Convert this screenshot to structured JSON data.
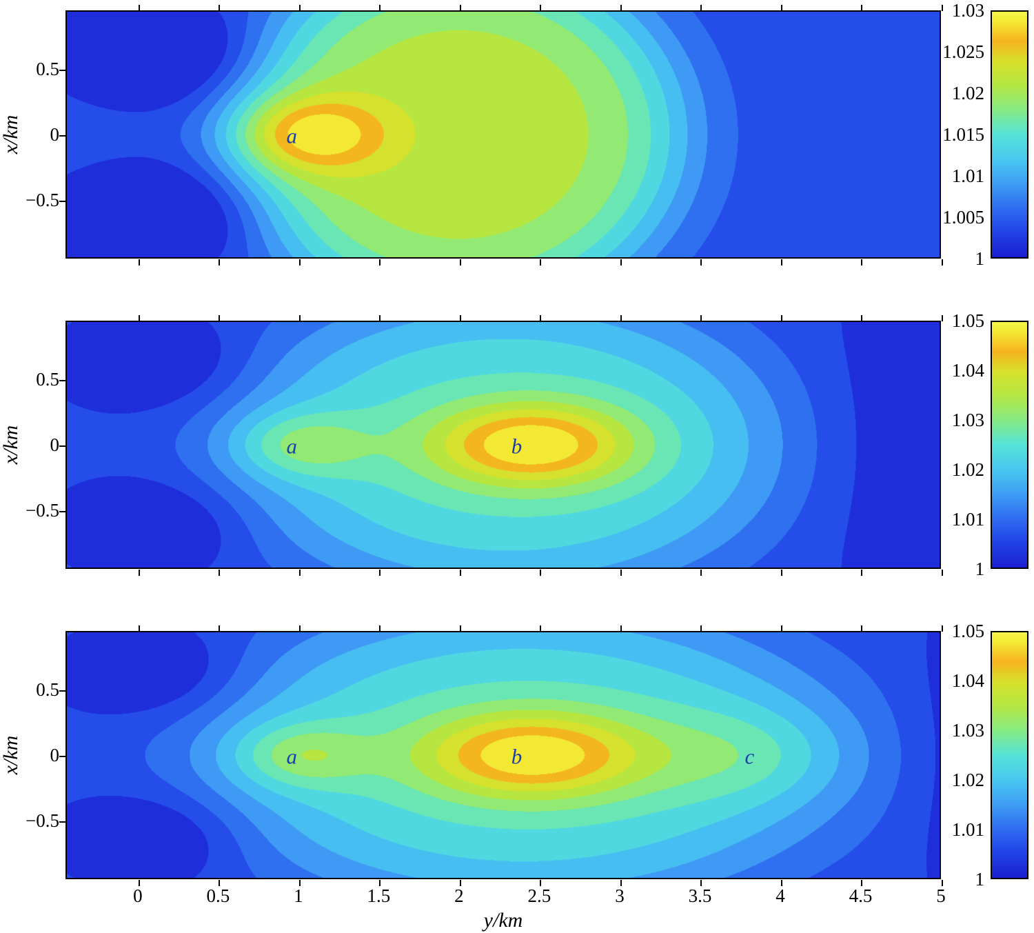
{
  "figure": {
    "background": "#ffffff",
    "xlabel": "y/km",
    "ylabel": "x/km",
    "text_color": "#000000",
    "annotation_color": "#1c3fae",
    "h_range": [
      -0.45,
      5.0
    ],
    "v_range": [
      -0.95,
      0.95
    ],
    "x_tick_values": [
      0,
      0.5,
      1,
      1.5,
      2,
      2.5,
      3,
      3.5,
      4,
      4.5,
      5
    ],
    "x_tick_labels": [
      "0",
      "0.5",
      "1",
      "1.5",
      "2",
      "2.5",
      "3",
      "3.5",
      "4",
      "4.5",
      "5"
    ],
    "y_tick_values": [
      0.5,
      0,
      -0.5
    ],
    "y_tick_labels": [
      "0.5",
      "0",
      "−0.5"
    ],
    "levels": 12,
    "colormap_stops": [
      {
        "t": 0.0,
        "c": "#1a1fd0"
      },
      {
        "t": 0.1,
        "c": "#2142e8"
      },
      {
        "t": 0.2,
        "c": "#2e6cf0"
      },
      {
        "t": 0.3,
        "c": "#3f9ef4"
      },
      {
        "t": 0.4,
        "c": "#48c8f0"
      },
      {
        "t": 0.5,
        "c": "#55e3d7"
      },
      {
        "t": 0.6,
        "c": "#86ea84"
      },
      {
        "t": 0.7,
        "c": "#b4e743"
      },
      {
        "t": 0.8,
        "c": "#d8e02a"
      },
      {
        "t": 0.88,
        "c": "#f6b31e"
      },
      {
        "t": 0.96,
        "c": "#f3ea34"
      },
      {
        "t": 1.0,
        "c": "#f6f64a"
      }
    ]
  },
  "chart_data": [
    {
      "type": "heatmap",
      "name": "top-panel",
      "xlabel": "y/km",
      "ylabel": "x/km",
      "colorbar": {
        "min": 1.0,
        "max": 1.03,
        "tick_values": [
          1.03,
          1.025,
          1.02,
          1.015,
          1.01,
          1.005,
          1
        ],
        "tick_labels": [
          "1.03",
          "1.025",
          "1.02",
          "1.015",
          "1.01",
          "1.005",
          "1"
        ]
      },
      "base": 1.004,
      "features": [
        {
          "name": "broad-ridge",
          "h": 2.0,
          "v": 0,
          "amp": 0.017,
          "sh": 1.0,
          "sv": 1.0,
          "p": 2.5
        },
        {
          "name": "peak-a",
          "h": 1.05,
          "v": 0,
          "amp": 0.011,
          "sh": 0.34,
          "sv": 0.21,
          "p": 1
        },
        {
          "name": "dip-top-left",
          "h": 0.1,
          "v": 0.63,
          "amp": -0.0075,
          "sh": 0.42,
          "sv": 0.26,
          "p": 1
        },
        {
          "name": "dip-bot-left",
          "h": 0.1,
          "v": -0.63,
          "amp": -0.0075,
          "sh": 0.42,
          "sv": 0.26,
          "p": 1
        }
      ],
      "annotations": [
        {
          "text": "a",
          "h": 0.95,
          "v": 0.0
        }
      ]
    },
    {
      "type": "heatmap",
      "name": "middle-panel",
      "xlabel": "y/km",
      "ylabel": "x/km",
      "colorbar": {
        "min": 1.0,
        "max": 1.05,
        "tick_values": [
          1.05,
          1.04,
          1.03,
          1.02,
          1.01,
          1
        ],
        "tick_labels": [
          "1.05",
          "1.04",
          "1.03",
          "1.02",
          "1.01",
          "1"
        ]
      },
      "base": 1.0055,
      "features": [
        {
          "name": "broad-ridge",
          "h": 2.3,
          "v": 0,
          "amp": 0.019,
          "sh": 1.25,
          "sv": 0.85,
          "p": 2
        },
        {
          "name": "bump-a",
          "h": 1.0,
          "v": 0,
          "amp": 0.012,
          "sh": 0.3,
          "sv": 0.18,
          "p": 1
        },
        {
          "name": "peak-b",
          "h": 2.45,
          "v": 0,
          "amp": 0.0265,
          "sh": 0.45,
          "sv": 0.23,
          "p": 1
        },
        {
          "name": "dip-top-left",
          "h": 0.1,
          "v": 0.63,
          "amp": -0.008,
          "sh": 0.38,
          "sv": 0.24,
          "p": 1
        },
        {
          "name": "dip-bot-left",
          "h": 0.1,
          "v": -0.63,
          "amp": -0.008,
          "sh": 0.38,
          "sv": 0.24,
          "p": 1
        },
        {
          "name": "dip-right",
          "h": 5.0,
          "v": 0,
          "amp": -0.0055,
          "sh": 0.5,
          "sv": 1.0,
          "p": 1
        }
      ],
      "annotations": [
        {
          "text": "a",
          "h": 0.95,
          "v": 0.0
        },
        {
          "text": "b",
          "h": 2.35,
          "v": 0.0
        }
      ]
    },
    {
      "type": "heatmap",
      "name": "bottom-panel",
      "xlabel": "y/km",
      "ylabel": "x/km",
      "colorbar": {
        "min": 1.0,
        "max": 1.05,
        "tick_values": [
          1.05,
          1.04,
          1.03,
          1.02,
          1.01,
          1
        ],
        "tick_labels": [
          "1.05",
          "1.04",
          "1.03",
          "1.02",
          "1.01",
          "1"
        ]
      },
      "base": 1.0055,
      "features": [
        {
          "name": "broad-ridge",
          "h": 2.4,
          "v": 0,
          "amp": 0.019,
          "sh": 1.45,
          "sv": 0.85,
          "p": 2
        },
        {
          "name": "bump-a",
          "h": 1.0,
          "v": 0,
          "amp": 0.012,
          "sh": 0.3,
          "sv": 0.18,
          "p": 1
        },
        {
          "name": "peak-b",
          "h": 2.45,
          "v": 0,
          "amp": 0.026,
          "sh": 0.5,
          "sv": 0.24,
          "p": 1
        },
        {
          "name": "bump-c",
          "h": 3.8,
          "v": 0,
          "amp": 0.007,
          "sh": 0.45,
          "sv": 0.26,
          "p": 1
        },
        {
          "name": "dip-top-left",
          "h": 0.1,
          "v": 0.63,
          "amp": -0.008,
          "sh": 0.38,
          "sv": 0.24,
          "p": 1
        },
        {
          "name": "dip-bot-left",
          "h": 0.1,
          "v": -0.63,
          "amp": -0.008,
          "sh": 0.38,
          "sv": 0.24,
          "p": 1
        },
        {
          "name": "dip-right",
          "h": 5.15,
          "v": 0,
          "amp": -0.004,
          "sh": 0.25,
          "sv": 0.9,
          "p": 1
        }
      ],
      "annotations": [
        {
          "text": "a",
          "h": 0.95,
          "v": 0.0
        },
        {
          "text": "b",
          "h": 2.35,
          "v": 0.0
        },
        {
          "text": "c",
          "h": 3.8,
          "v": 0.0
        }
      ]
    }
  ]
}
